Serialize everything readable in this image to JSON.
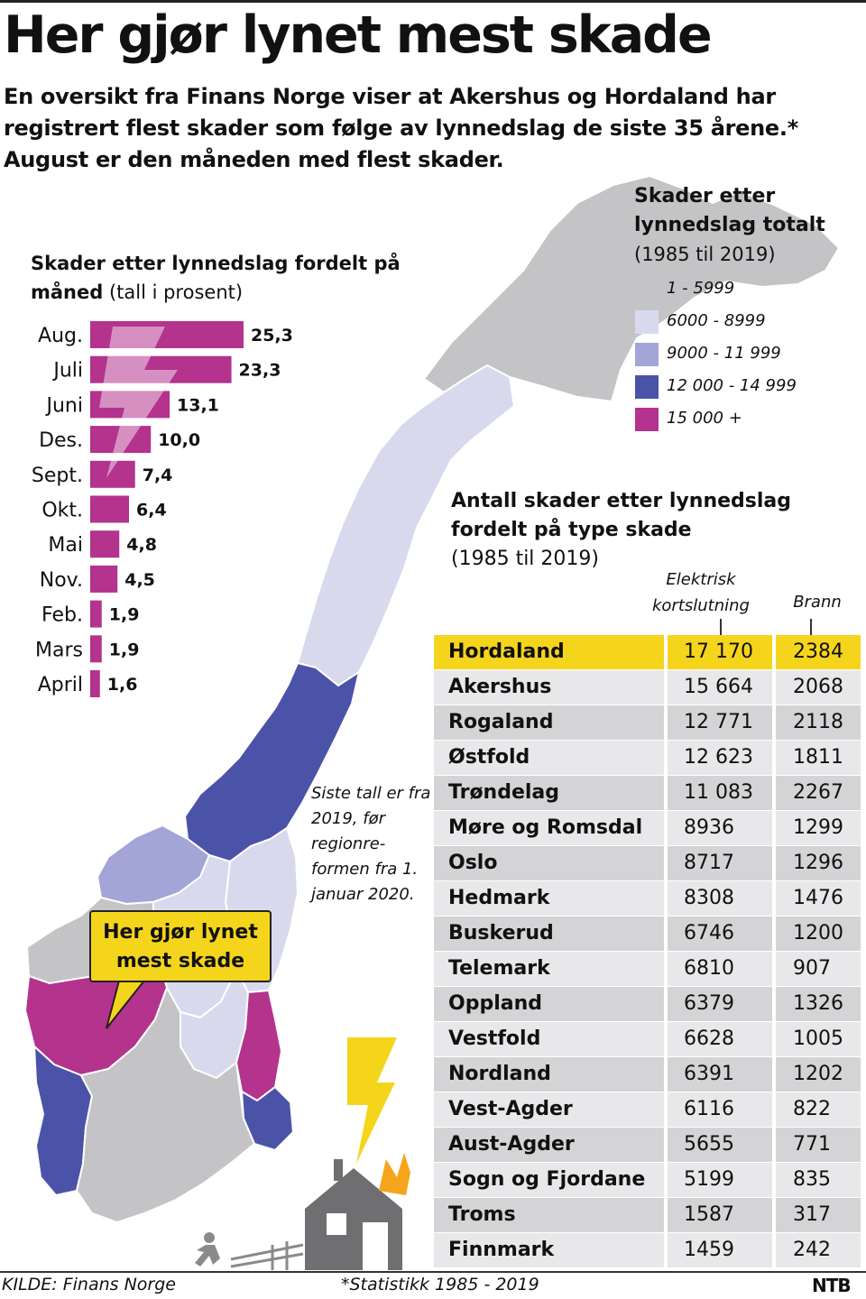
{
  "title": "Her gjør lynet mest skade",
  "lead": "En oversikt fra Finans Norge viser at Akershus og Hordaland har registrert flest skader som følge av lynnedslag de siste 35 årene.* August er den måneden med flest skader.",
  "month_chart": {
    "title_bold": "Skader etter lynnedslag fordelt på måned",
    "title_plain": " (tall i prosent)"
  },
  "legend": {
    "title": "Skader etter lynnedslag totalt",
    "subtitle": "(1985 til 2019)",
    "items": [
      {
        "label": "1 - 5999",
        "color": "#c4c4c6"
      },
      {
        "label": "6000 - 8999",
        "color": "#d9d9ee"
      },
      {
        "label": "9000 - 11 999",
        "color": "#a2a5d6"
      },
      {
        "label": "12 000 - 14 999",
        "color": "#4b53a9"
      },
      {
        "label": "15 000 +",
        "color": "#b3338d"
      }
    ]
  },
  "type_table": {
    "title_bold": "Antall skader etter lynnedslag fordelt på type skade",
    "subtitle": "(1985 til 2019)",
    "col_electric": "Elektrisk kortslutning",
    "col_fire": "Brann",
    "highlight_color": "#f5d51c",
    "rows": [
      {
        "name": "Hordaland",
        "electric": "17 170",
        "fire": "2384"
      },
      {
        "name": "Akershus",
        "electric": "15 664",
        "fire": "2068"
      },
      {
        "name": "Rogaland",
        "electric": "12 771",
        "fire": "2118"
      },
      {
        "name": "Østfold",
        "electric": "12 623",
        "fire": "1811"
      },
      {
        "name": "Trøndelag",
        "electric": "11 083",
        "fire": "2267"
      },
      {
        "name": "Møre og Romsdal",
        "electric": "8936",
        "fire": "1299"
      },
      {
        "name": "Oslo",
        "electric": "8717",
        "fire": "1296"
      },
      {
        "name": "Hedmark",
        "electric": "8308",
        "fire": "1476"
      },
      {
        "name": "Buskerud",
        "electric": "6746",
        "fire": "1200"
      },
      {
        "name": "Telemark",
        "electric": "6810",
        "fire": "907"
      },
      {
        "name": "Oppland",
        "electric": "6379",
        "fire": "1326"
      },
      {
        "name": "Vestfold",
        "electric": "6628",
        "fire": "1005"
      },
      {
        "name": "Nordland",
        "electric": "6391",
        "fire": "1202"
      },
      {
        "name": "Vest-Agder",
        "electric": "6116",
        "fire": "822"
      },
      {
        "name": "Aust-Agder",
        "electric": "5655",
        "fire": "771"
      },
      {
        "name": "Sogn og Fjordane",
        "electric": "5199",
        "fire": "835"
      },
      {
        "name": "Troms",
        "electric": "1587",
        "fire": "317"
      },
      {
        "name": "Finnmark",
        "electric": "1459",
        "fire": "242"
      }
    ]
  },
  "note": "Siste tall er fra 2019, før regionre-formen fra 1. januar 2020.",
  "callout": "Her gjør lynet mest skade",
  "footer": {
    "source": "KILDE: Finans Norge",
    "statistic": "*Statistikk 1985 - 2019",
    "logo": "NTB"
  },
  "chart_data": {
    "type": "bar",
    "orientation": "horizontal",
    "title": "Skader etter lynnedslag fordelt på måned (tall i prosent)",
    "categories": [
      "Aug.",
      "Juli",
      "Juni",
      "Des.",
      "Sept.",
      "Okt.",
      "Mai",
      "Nov.",
      "Feb.",
      "Mars",
      "April"
    ],
    "values": [
      25.3,
      23.3,
      13.1,
      10.0,
      7.4,
      6.4,
      4.8,
      4.5,
      1.9,
      1.9,
      1.6
    ],
    "value_labels": [
      "25,3",
      "23,3",
      "13,1",
      "10,0",
      "7,4",
      "6,4",
      "4,8",
      "4,5",
      "1,9",
      "1,9",
      "1,6"
    ],
    "bar_color": "#b3338d",
    "xlim": [
      0,
      25.3
    ]
  }
}
